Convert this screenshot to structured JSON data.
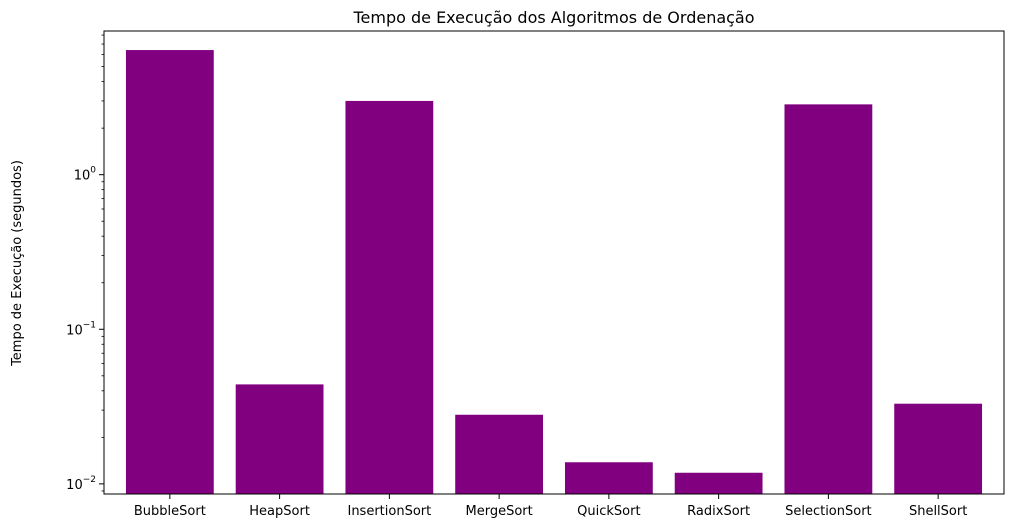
{
  "chart_data": {
    "type": "bar",
    "title": "Tempo de Execução dos Algoritmos de Ordenação",
    "xlabel": "",
    "ylabel": "Tempo de Execução (segundos)",
    "yscale": "log",
    "ylim": [
      0.0086,
      8.5
    ],
    "grid": false,
    "bar_color": "#800080",
    "categories": [
      "BubbleSort",
      "HeapSort",
      "InsertionSort",
      "MergeSort",
      "QuickSort",
      "RadixSort",
      "SelectionSort",
      "ShellSort"
    ],
    "values": [
      6.4,
      0.044,
      3.0,
      0.028,
      0.0138,
      0.0118,
      2.85,
      0.033
    ],
    "y_ticks": [
      {
        "value": 0.01,
        "base": "10",
        "exp": "−2"
      },
      {
        "value": 0.1,
        "base": "10",
        "exp": "−1"
      },
      {
        "value": 1,
        "base": "10",
        "exp": "0"
      }
    ]
  }
}
